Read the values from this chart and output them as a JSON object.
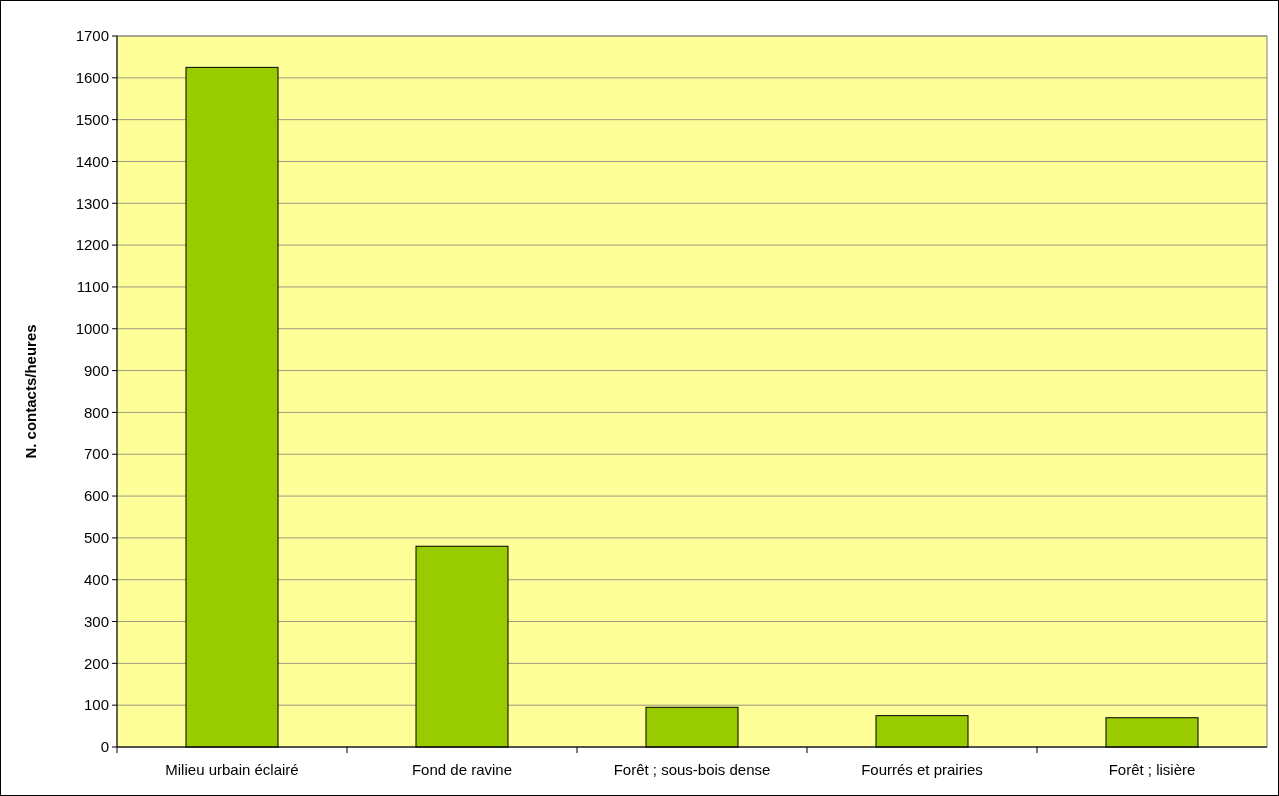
{
  "chart_data": {
    "type": "bar",
    "ylabel": "N. contacts/heures",
    "categories": [
      "Milieu urbain éclairé",
      "Fond de ravine",
      "Forêt ; sous-bois dense",
      "Fourrés et prairies",
      "Forêt ; lisière"
    ],
    "values": [
      1625,
      480,
      95,
      75,
      70
    ],
    "color": "#99cc00",
    "ylim": [
      0,
      1700
    ],
    "yticks": [
      0,
      100,
      200,
      300,
      400,
      500,
      600,
      700,
      800,
      900,
      1000,
      1100,
      1200,
      1300,
      1400,
      1500,
      1600,
      1700
    ],
    "grid": "y"
  }
}
